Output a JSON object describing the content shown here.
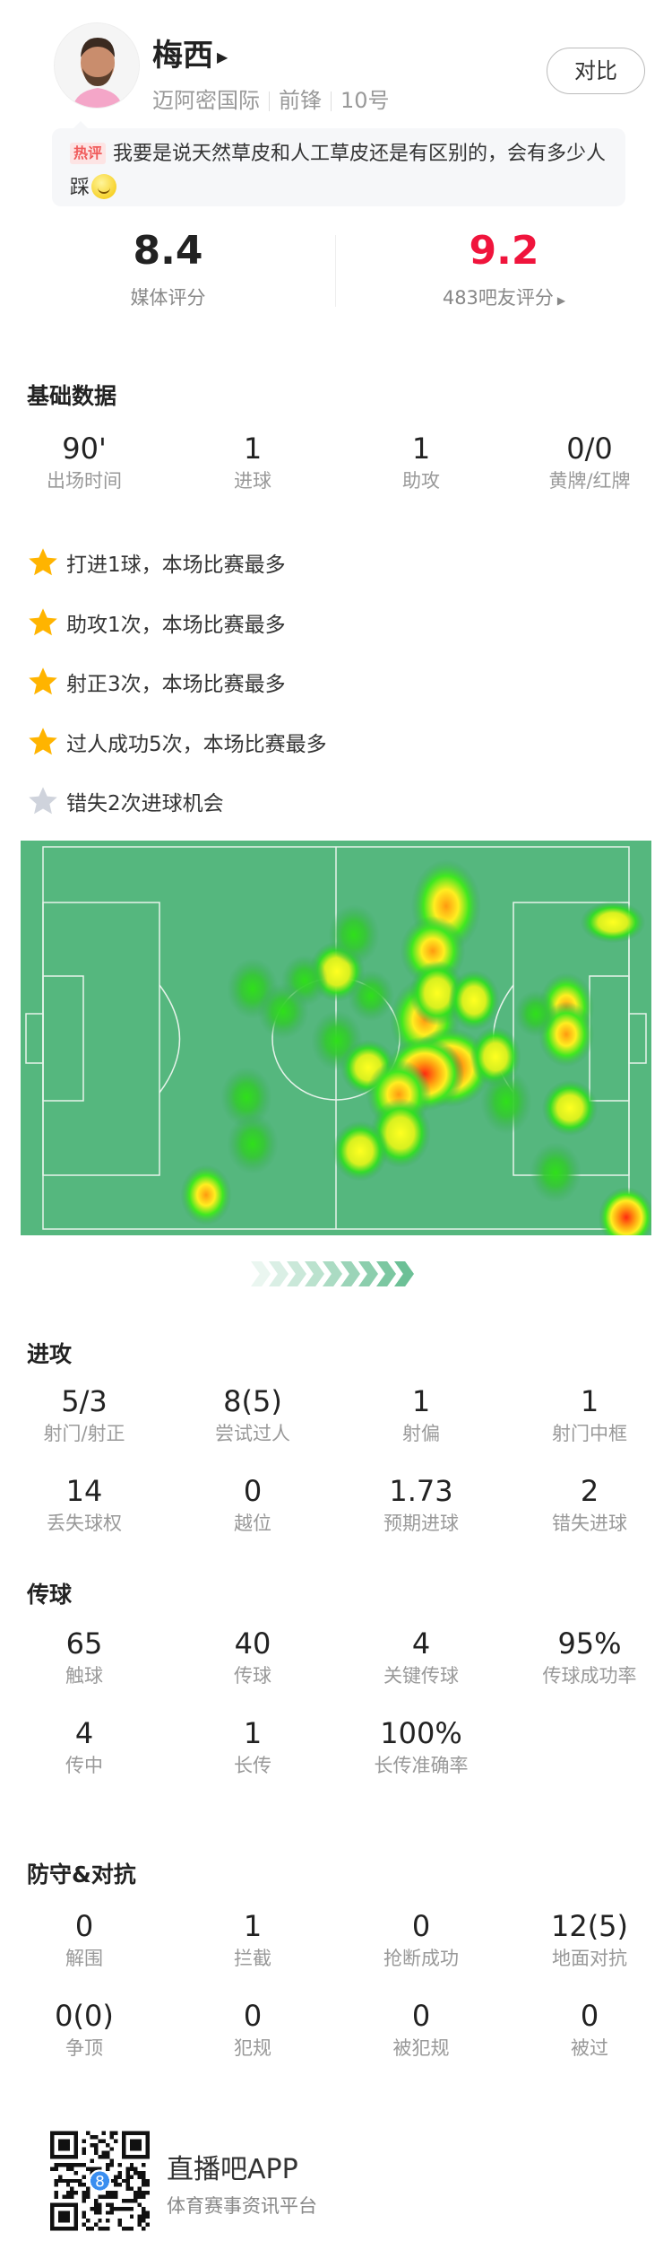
{
  "player": {
    "name": "梅西",
    "team": "迈阿密国际",
    "position": "前锋",
    "number": "10号",
    "compare_label": "对比"
  },
  "comment": {
    "badge": "热评",
    "text": "我要是说天然草皮和人工草皮还是有区别的，会有多少人踩",
    "emoji": "smile-emoji"
  },
  "ratings": {
    "media": {
      "value": "8.4",
      "label": "媒体评分"
    },
    "fans": {
      "value": "9.2",
      "label": "483吧友评分",
      "color": "#f0143c"
    }
  },
  "basic": {
    "title": "基础数据",
    "stats": [
      {
        "value": "90'",
        "label": "出场时间"
      },
      {
        "value": "1",
        "label": "进球"
      },
      {
        "value": "1",
        "label": "助攻"
      },
      {
        "value": "0/0",
        "label": "黄牌/红牌"
      }
    ]
  },
  "highlights": [
    {
      "text": "打进1球，本场比赛最多",
      "icon": "star-gold"
    },
    {
      "text": "助攻1次，本场比赛最多",
      "icon": "star-gold"
    },
    {
      "text": "射正3次，本场比赛最多",
      "icon": "star-gold"
    },
    {
      "text": "过人成功5次，本场比赛最多",
      "icon": "star-gold"
    },
    {
      "text": "错失2次进球机会",
      "icon": "star-grey"
    }
  ],
  "attack": {
    "title": "进攻",
    "stats": [
      {
        "value": "5/3",
        "label": "射门/射正"
      },
      {
        "value": "8(5)",
        "label": "尝试过人"
      },
      {
        "value": "1",
        "label": "射偏"
      },
      {
        "value": "1",
        "label": "射门中框"
      },
      {
        "value": "14",
        "label": "丢失球权"
      },
      {
        "value": "0",
        "label": "越位"
      },
      {
        "value": "1.73",
        "label": "预期进球"
      },
      {
        "value": "2",
        "label": "错失进球"
      }
    ]
  },
  "passing": {
    "title": "传球",
    "stats": [
      {
        "value": "65",
        "label": "触球"
      },
      {
        "value": "40",
        "label": "传球"
      },
      {
        "value": "4",
        "label": "关键传球"
      },
      {
        "value": "95%",
        "label": "传球成功率"
      },
      {
        "value": "4",
        "label": "传中"
      },
      {
        "value": "1",
        "label": "长传"
      },
      {
        "value": "100%",
        "label": "长传准确率"
      }
    ]
  },
  "defense": {
    "title": "防守&对抗",
    "stats": [
      {
        "value": "0",
        "label": "解围"
      },
      {
        "value": "1",
        "label": "拦截"
      },
      {
        "value": "0",
        "label": "抢断成功"
      },
      {
        "value": "12(5)",
        "label": "地面对抗"
      },
      {
        "value": "0(0)",
        "label": "争顶"
      },
      {
        "value": "0",
        "label": "犯规"
      },
      {
        "value": "0",
        "label": "被犯规"
      },
      {
        "value": "0",
        "label": "被过"
      }
    ]
  },
  "footer": {
    "app_name": "直播吧APP",
    "tagline": "体育赛事资讯平台"
  },
  "colors": {
    "pitch": "#55b77e",
    "star_gold": "#ffb400",
    "star_grey": "#cfd3dc",
    "accent_red": "#f0143c"
  }
}
